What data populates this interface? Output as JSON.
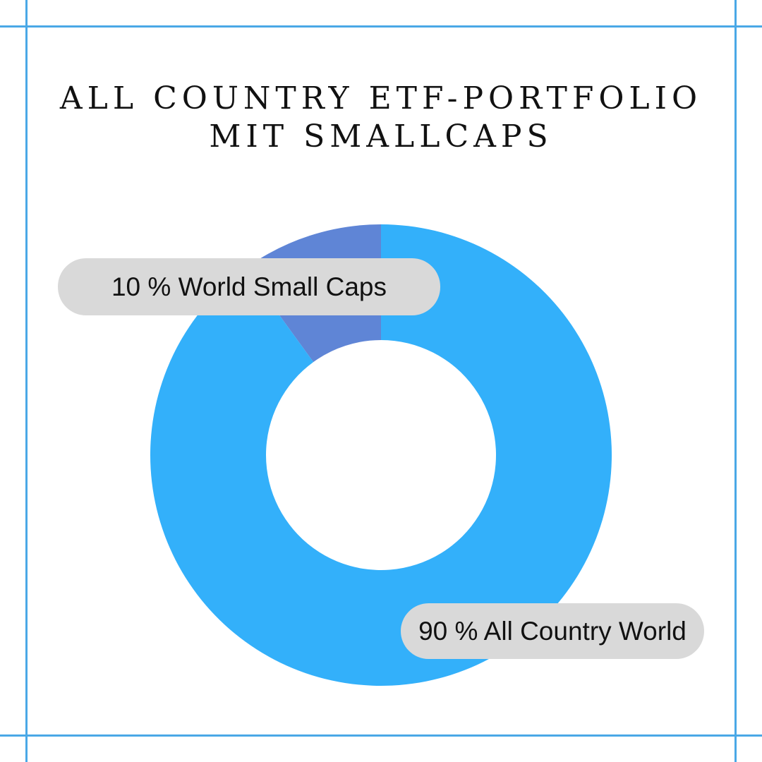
{
  "chart_data": {
    "type": "pie",
    "title": "ALL COUNTRY ETF-PORTFOLIO MIT SMALLCAPS",
    "title_lines": [
      "ALL COUNTRY ETF-PORTFOLIO",
      "MIT SMALLCAPS"
    ],
    "slices": [
      {
        "label": "World Small Caps",
        "value": 10,
        "color": "#5f85d6"
      },
      {
        "label": "All Country World",
        "value": 90,
        "color": "#33b0fa"
      }
    ],
    "labels": [
      "10 % World Small Caps",
      "90 % All Country World"
    ],
    "legend": "none"
  },
  "colors": {
    "frame": "#4aa8e6",
    "background": "#ffffff",
    "label_pill": "#d9d9d9"
  }
}
